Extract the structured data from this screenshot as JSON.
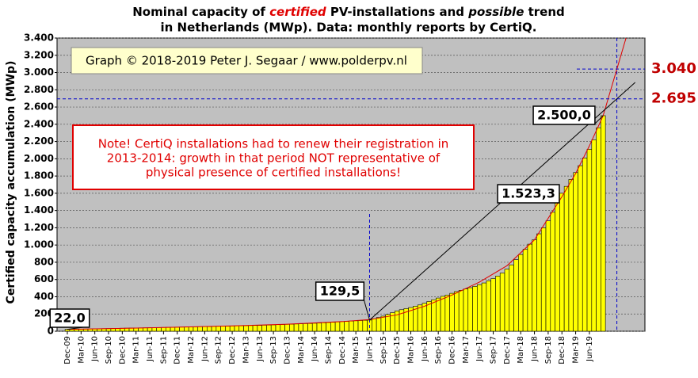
{
  "chart_data": {
    "type": "bar",
    "title": [
      "Nominal capacity of ",
      "certified",
      " PV-installations and ",
      "possible",
      " trend"
    ],
    "subtitle": "in Netherlands (MWp). Data: monthly reports by CertiQ.",
    "y_label": "Certified capacity accumulation (MWp)",
    "credit": "Graph © 2018-2019 Peter J. Segaar / www.polderpv.nl",
    "note": [
      "Note! CertiQ installations had to renew their registration in",
      "2013-2014:  growth in that period NOT representative of",
      "physical presence of certified installations!"
    ],
    "color": "#ffff00",
    "categories": [
      "Dec-09",
      null,
      null,
      "Mar-10",
      null,
      null,
      "Jun-10",
      null,
      null,
      "Sep-10",
      null,
      null,
      "Dec-10",
      null,
      null,
      "Mar-11",
      null,
      null,
      "Jun-11",
      null,
      null,
      "Sep-11",
      null,
      null,
      "Dec-11",
      null,
      null,
      "Mar-12",
      null,
      null,
      "Jun-12",
      null,
      null,
      "Sep-12",
      null,
      null,
      "Dec-12",
      null,
      null,
      "Mar-13",
      null,
      null,
      "Jun-13",
      null,
      null,
      "Sep-13",
      null,
      null,
      "Dec-13",
      null,
      null,
      "Mar-14",
      null,
      null,
      "Jun-14",
      null,
      null,
      "Sep-14",
      null,
      null,
      "Dec-14",
      null,
      null,
      "Mar-15",
      null,
      null,
      "Jun-15",
      null,
      null,
      "Sep-15",
      null,
      null,
      "Dec-15",
      null,
      null,
      "Mar-16",
      null,
      null,
      "Jun-16",
      null,
      null,
      "Sep-16",
      null,
      null,
      "Dec-16",
      null,
      null,
      "Mar-17",
      null,
      null,
      "Jun-17",
      null,
      null,
      "Sep-17",
      null,
      null,
      "Dec-17",
      null,
      null,
      "Mar-18",
      null,
      null,
      "Jun-18",
      null,
      null,
      "Sep-18",
      null,
      null,
      "Dec-18",
      null,
      null,
      "Mar-19",
      null,
      null,
      "Jun-19",
      null,
      null,
      null,
      null,
      null,
      null,
      null,
      null,
      null,
      null,
      null,
      null
    ],
    "values": [
      22,
      23,
      24,
      25,
      26,
      27,
      28,
      29,
      30,
      31,
      32,
      33,
      35,
      36,
      37,
      38,
      39,
      40,
      41,
      42,
      43,
      44,
      45,
      46,
      48,
      49,
      50,
      51,
      52,
      53,
      54,
      55,
      57,
      58,
      59,
      60,
      62,
      63,
      64,
      65,
      66,
      67,
      68,
      70,
      72,
      74,
      76,
      78,
      80,
      82,
      84,
      86,
      88,
      90,
      93,
      96,
      99,
      102,
      105,
      108,
      112,
      115,
      118,
      121,
      124,
      127,
      129.5,
      145,
      160,
      175,
      195,
      215,
      235,
      250,
      262,
      275,
      290,
      305,
      325,
      345,
      365,
      385,
      405,
      420,
      440,
      460,
      475,
      490,
      505,
      520,
      540,
      560,
      585,
      610,
      640,
      675,
      720,
      770,
      830,
      890,
      950,
      1010,
      1060,
      1130,
      1200,
      1280,
      1380,
      1523.3,
      1600,
      1680,
      1760,
      1840,
      1920,
      2010,
      2110,
      2220,
      2360,
      2500,
      null,
      null,
      null,
      null,
      null,
      null,
      null,
      null,
      null
    ],
    "value_labels": [
      "22,0",
      null,
      null,
      null,
      null,
      null,
      null,
      null,
      null,
      null,
      null,
      null,
      null,
      null,
      null,
      null,
      null,
      null,
      null,
      null,
      null,
      null,
      null,
      null,
      null,
      null,
      null,
      null,
      null,
      null,
      null,
      null,
      null,
      null,
      null,
      null,
      null,
      null,
      null,
      null,
      null,
      null,
      null,
      null,
      null,
      null,
      null,
      null,
      null,
      null,
      null,
      null,
      null,
      null,
      null,
      null,
      null,
      null,
      null,
      null,
      null,
      null,
      null,
      null,
      null,
      null,
      "129,5",
      null,
      null,
      null,
      null,
      null,
      null,
      null,
      null,
      null,
      null,
      null,
      null,
      null,
      null,
      null,
      null,
      null,
      null,
      null,
      null,
      null,
      null,
      null,
      null,
      null,
      null,
      null,
      null,
      null,
      null,
      null,
      null,
      null,
      null,
      null,
      null,
      null,
      null,
      null,
      null,
      "1.523,3",
      null,
      null,
      null,
      null,
      null,
      null,
      null,
      null,
      null,
      "2.500,0",
      null,
      null,
      null,
      null,
      null,
      null,
      null,
      null,
      null
    ],
    "ylim": [
      0,
      3400
    ],
    "yticks": [
      0,
      200,
      400,
      600,
      800,
      {
        "value": 1000,
        "label": "1.000"
      },
      {
        "value": 1200,
        "label": "1.200"
      },
      {
        "value": 1400,
        "label": "1.400"
      },
      {
        "value": 1600,
        "label": "1.600"
      },
      {
        "value": 1800,
        "label": "1.800"
      },
      {
        "value": 2000,
        "label": "2.000"
      },
      {
        "value": 2200,
        "label": "2.200"
      },
      {
        "value": 2400,
        "label": "2.400"
      },
      {
        "value": 2600,
        "label": "2.600"
      },
      {
        "value": 2800,
        "label": "2.800"
      },
      {
        "value": 3000,
        "label": "3.000"
      },
      {
        "value": 3200,
        "label": "3.200"
      },
      {
        "value": 3400,
        "label": "3.400"
      }
    ],
    "grid": true,
    "trends": [
      {
        "color": "#e00000",
        "x": [
          0,
          12,
          24,
          36,
          48,
          60,
          66,
          72,
          78,
          84,
          90,
          96,
          102,
          108,
          111,
          114,
          117,
          120,
          122
        ],
        "values": [
          22,
          33,
          47,
          62,
          82,
          112,
          135,
          190,
          290,
          420,
          570,
          760,
          1060,
          1560,
          1830,
          2150,
          2500,
          3040,
          3400
        ]
      },
      {
        "color": "#000000",
        "x": [
          66,
          124
        ],
        "values": [
          129.5,
          2885
        ]
      }
    ],
    "reference_lines": [
      {
        "value": 2695,
        "label": "2.695"
      },
      {
        "value": 3040,
        "label": "3.040"
      }
    ],
    "ref_color": "#0000cc",
    "ref_label_color": "#c00000"
  }
}
